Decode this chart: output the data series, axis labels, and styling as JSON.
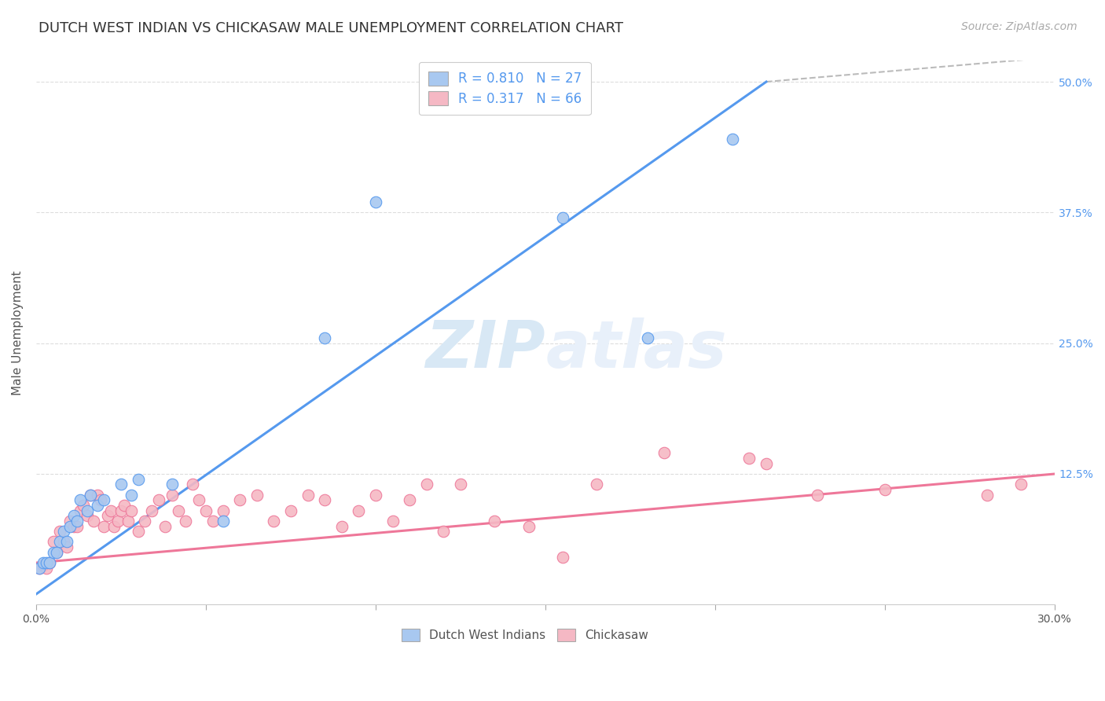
{
  "title": "DUTCH WEST INDIAN VS CHICKASAW MALE UNEMPLOYMENT CORRELATION CHART",
  "source": "Source: ZipAtlas.com",
  "ylabel": "Male Unemployment",
  "xmin": 0.0,
  "xmax": 0.3,
  "ymin": 0.0,
  "ymax": 0.52,
  "yticks": [
    0.0,
    0.125,
    0.25,
    0.375,
    0.5
  ],
  "ytick_labels": [
    "",
    "12.5%",
    "25.0%",
    "37.5%",
    "50.0%"
  ],
  "xticks": [
    0.0,
    0.05,
    0.1,
    0.15,
    0.2,
    0.25,
    0.3
  ],
  "xtick_labels": [
    "0.0%",
    "",
    "",
    "",
    "",
    "",
    "30.0%"
  ],
  "blue_color": "#A8C8F0",
  "pink_color": "#F5B8C4",
  "blue_line_color": "#5599EE",
  "pink_line_color": "#EE7799",
  "legend_R_blue": "0.810",
  "legend_N_blue": "27",
  "legend_R_pink": "0.317",
  "legend_N_pink": "66",
  "blue_dots": [
    [
      0.001,
      0.035
    ],
    [
      0.002,
      0.04
    ],
    [
      0.003,
      0.04
    ],
    [
      0.004,
      0.04
    ],
    [
      0.005,
      0.05
    ],
    [
      0.006,
      0.05
    ],
    [
      0.007,
      0.06
    ],
    [
      0.008,
      0.07
    ],
    [
      0.009,
      0.06
    ],
    [
      0.01,
      0.075
    ],
    [
      0.011,
      0.085
    ],
    [
      0.012,
      0.08
    ],
    [
      0.013,
      0.1
    ],
    [
      0.015,
      0.09
    ],
    [
      0.016,
      0.105
    ],
    [
      0.018,
      0.095
    ],
    [
      0.02,
      0.1
    ],
    [
      0.025,
      0.115
    ],
    [
      0.028,
      0.105
    ],
    [
      0.03,
      0.12
    ],
    [
      0.04,
      0.115
    ],
    [
      0.055,
      0.08
    ],
    [
      0.085,
      0.255
    ],
    [
      0.1,
      0.385
    ],
    [
      0.155,
      0.37
    ],
    [
      0.18,
      0.255
    ],
    [
      0.205,
      0.445
    ]
  ],
  "pink_dots": [
    [
      0.001,
      0.035
    ],
    [
      0.002,
      0.038
    ],
    [
      0.003,
      0.035
    ],
    [
      0.004,
      0.04
    ],
    [
      0.005,
      0.06
    ],
    [
      0.006,
      0.05
    ],
    [
      0.007,
      0.07
    ],
    [
      0.008,
      0.06
    ],
    [
      0.009,
      0.055
    ],
    [
      0.01,
      0.08
    ],
    [
      0.011,
      0.075
    ],
    [
      0.012,
      0.075
    ],
    [
      0.013,
      0.09
    ],
    [
      0.014,
      0.095
    ],
    [
      0.015,
      0.085
    ],
    [
      0.016,
      0.105
    ],
    [
      0.017,
      0.08
    ],
    [
      0.018,
      0.105
    ],
    [
      0.019,
      0.1
    ],
    [
      0.02,
      0.075
    ],
    [
      0.021,
      0.085
    ],
    [
      0.022,
      0.09
    ],
    [
      0.023,
      0.075
    ],
    [
      0.024,
      0.08
    ],
    [
      0.025,
      0.09
    ],
    [
      0.026,
      0.095
    ],
    [
      0.027,
      0.08
    ],
    [
      0.028,
      0.09
    ],
    [
      0.03,
      0.07
    ],
    [
      0.032,
      0.08
    ],
    [
      0.034,
      0.09
    ],
    [
      0.036,
      0.1
    ],
    [
      0.038,
      0.075
    ],
    [
      0.04,
      0.105
    ],
    [
      0.042,
      0.09
    ],
    [
      0.044,
      0.08
    ],
    [
      0.046,
      0.115
    ],
    [
      0.048,
      0.1
    ],
    [
      0.05,
      0.09
    ],
    [
      0.052,
      0.08
    ],
    [
      0.055,
      0.09
    ],
    [
      0.06,
      0.1
    ],
    [
      0.065,
      0.105
    ],
    [
      0.07,
      0.08
    ],
    [
      0.075,
      0.09
    ],
    [
      0.08,
      0.105
    ],
    [
      0.085,
      0.1
    ],
    [
      0.09,
      0.075
    ],
    [
      0.095,
      0.09
    ],
    [
      0.1,
      0.105
    ],
    [
      0.105,
      0.08
    ],
    [
      0.11,
      0.1
    ],
    [
      0.115,
      0.115
    ],
    [
      0.12,
      0.07
    ],
    [
      0.125,
      0.115
    ],
    [
      0.135,
      0.08
    ],
    [
      0.145,
      0.075
    ],
    [
      0.155,
      0.045
    ],
    [
      0.165,
      0.115
    ],
    [
      0.185,
      0.145
    ],
    [
      0.21,
      0.14
    ],
    [
      0.23,
      0.105
    ],
    [
      0.25,
      0.11
    ],
    [
      0.215,
      0.135
    ],
    [
      0.28,
      0.105
    ],
    [
      0.29,
      0.115
    ]
  ],
  "blue_line_x": [
    0.0,
    0.215
  ],
  "blue_line_y": [
    0.01,
    0.5
  ],
  "pink_line_x": [
    0.0,
    0.3
  ],
  "pink_line_y": [
    0.04,
    0.125
  ],
  "dash_line_x": [
    0.215,
    0.305
  ],
  "dash_line_y": [
    0.5,
    0.525
  ],
  "title_fontsize": 13,
  "source_fontsize": 10,
  "axis_label_fontsize": 11,
  "tick_fontsize": 10,
  "legend_fontsize": 12,
  "watermark_color": "#D8E8F5",
  "watermark_fontsize": 60
}
